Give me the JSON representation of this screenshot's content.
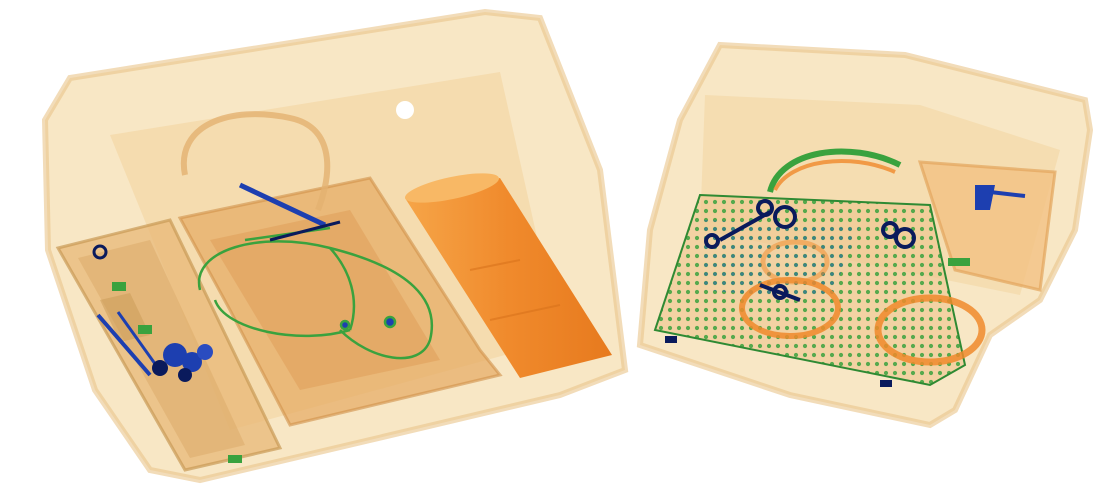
{
  "scan": {
    "colors": {
      "background": "#ffffff",
      "organic_light": "#f4d9a6",
      "organic_mid": "#e9b56e",
      "organic_dense": "#f08a2c",
      "inorganic_green": "#3aa23e",
      "metal_blue": "#1d3fb0",
      "metal_dark": "#0a1a5c"
    },
    "objects": [
      {
        "name": "left-bin",
        "type": "plastic tray"
      },
      {
        "name": "right-bin",
        "type": "plastic tray"
      },
      {
        "name": "cable-coil",
        "type": "wire"
      },
      {
        "name": "cylindrical-container",
        "type": "organic"
      },
      {
        "name": "tool-case",
        "type": "case"
      },
      {
        "name": "mesh-basket",
        "type": "metal mesh"
      },
      {
        "name": "ring-objects",
        "type": "organic"
      }
    ]
  }
}
